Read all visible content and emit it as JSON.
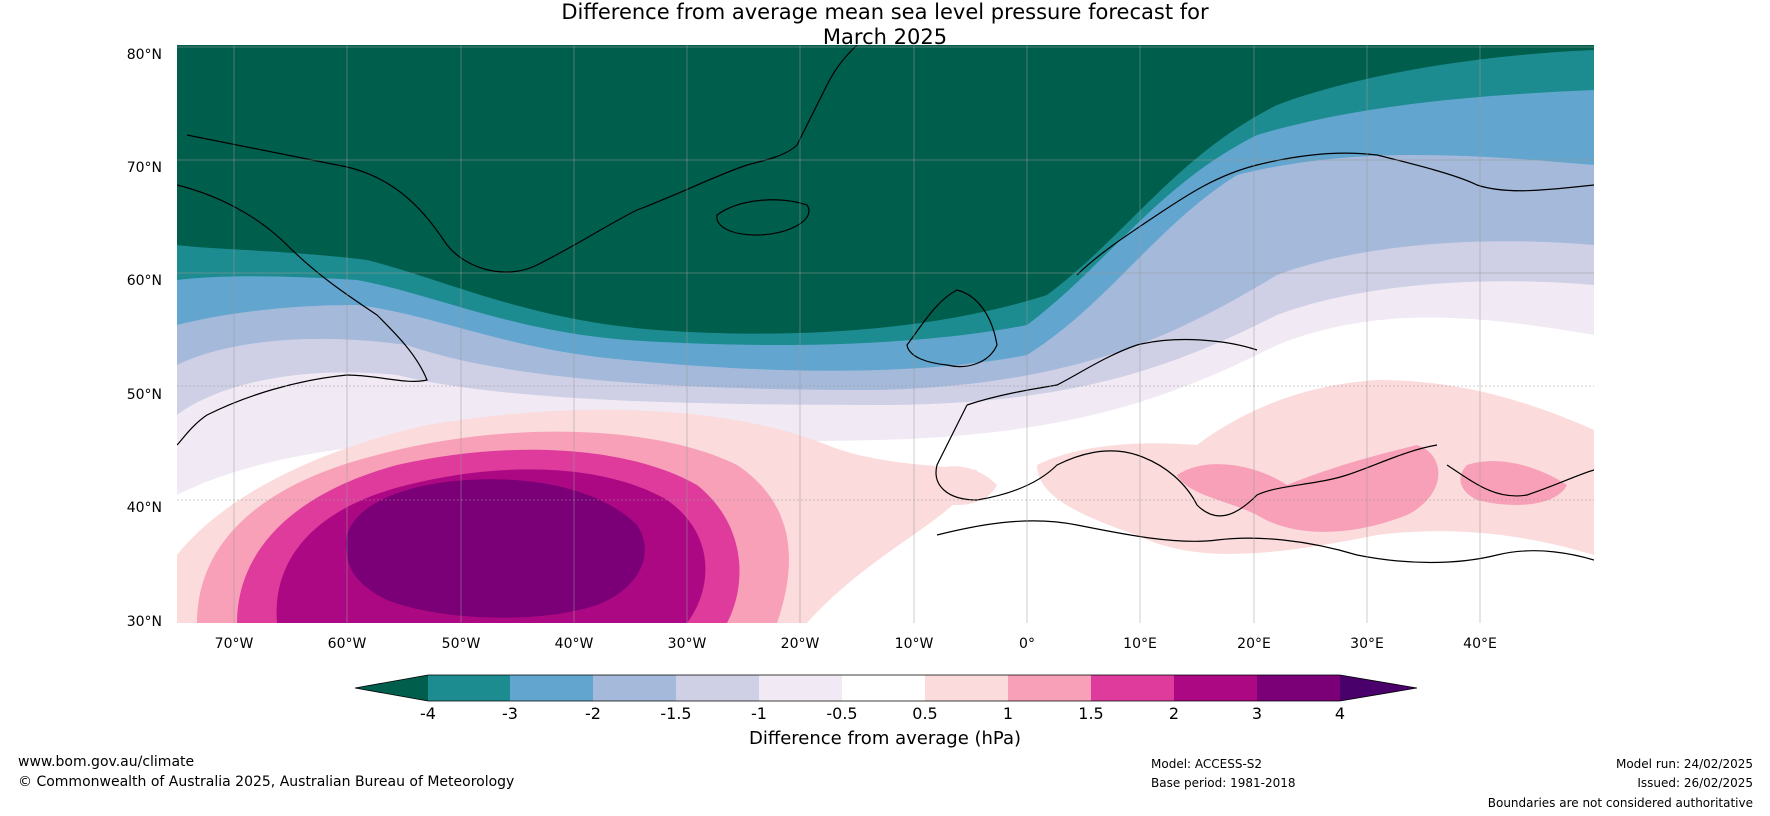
{
  "title_line1": "Difference from average mean sea level pressure forecast for",
  "title_line2": "March 2025",
  "lat_labels": [
    "80°N",
    "70°N",
    "60°N",
    "50°N",
    "40°N",
    "30°N"
  ],
  "lon_labels": [
    "70°W",
    "60°W",
    "50°W",
    "40°W",
    "30°W",
    "20°W",
    "10°W",
    "0°",
    "10°E",
    "20°E",
    "30°E",
    "40°E"
  ],
  "colorbar": {
    "label": "Difference from average (hPa)",
    "ticks": [
      "-4",
      "-3",
      "-2",
      "-1.5",
      "-1",
      "-0.5",
      "0.5",
      "1",
      "1.5",
      "2",
      "3",
      "4"
    ],
    "colors": {
      "below_-4": "#005e4c",
      "-4_-3": "#1c8c90",
      "-3_-2": "#62a6cf",
      "-2_-1.5": "#a5b9db",
      "-1.5_-1": "#cfd0e6",
      "-1_-0.5": "#f1eaf4",
      "-0.5_0.5": "#ffffff",
      "0.5_1": "#fbdbdc",
      "1_1.5": "#f8a0b8",
      "1.5_2": "#de3b9c",
      "2_3": "#ad0883",
      "3_4": "#7b0077",
      "above_4": "#4a006a"
    }
  },
  "footer": {
    "website": "www.bom.gov.au/climate",
    "copyright": "© Commonwealth of Australia 2025, Australian Bureau of Meteorology",
    "model": "Model: ACCESS-S2",
    "base_period": "Base period: 1981-2018",
    "model_run": "Model run: 24/02/2025",
    "issued": "Issued: 26/02/2025",
    "disclaimer": "Boundaries are not considered authoritative"
  }
}
